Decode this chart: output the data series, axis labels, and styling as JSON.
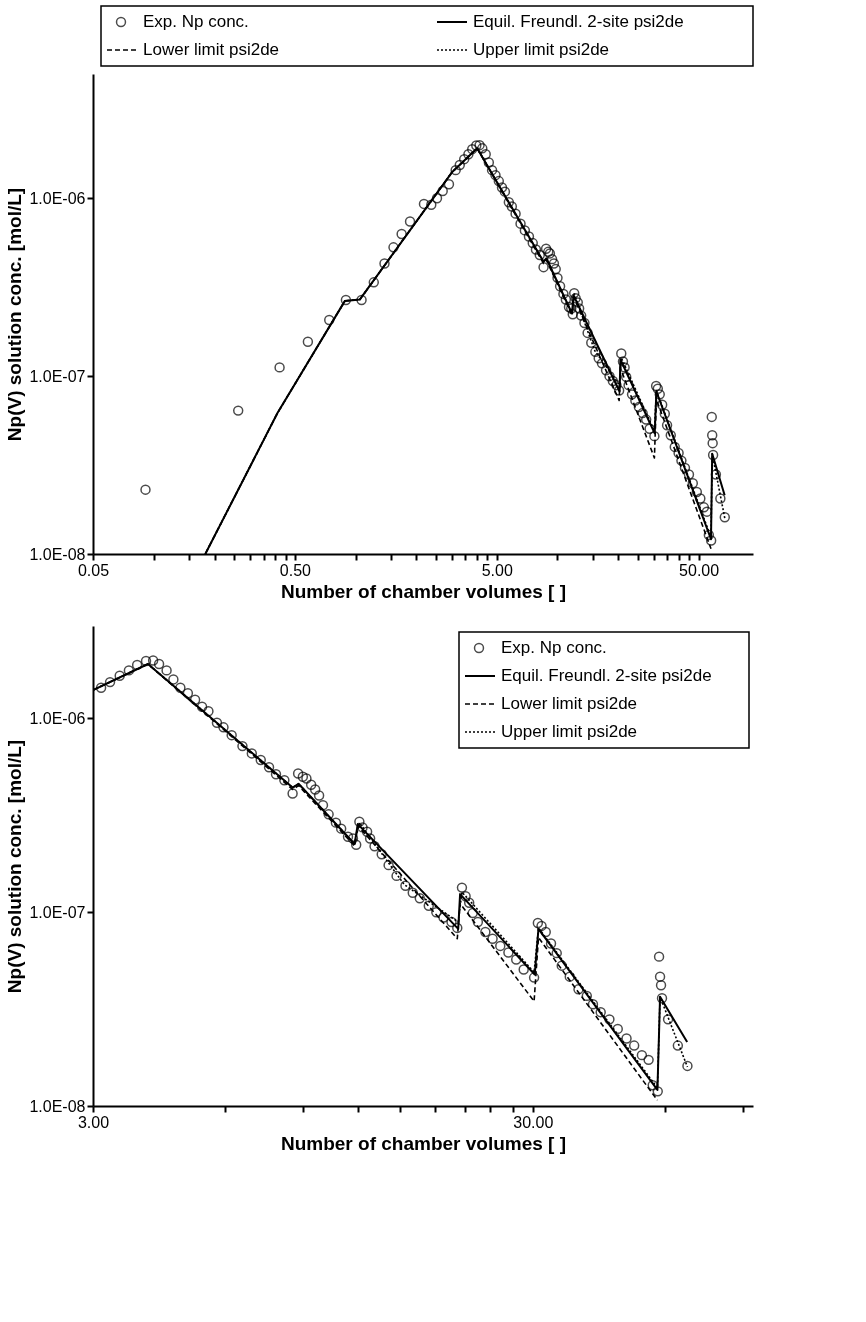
{
  "chart_data": [
    {
      "type": "scatter",
      "xlabel": "Number of chamber volumes [ ]",
      "ylabel": "Np(V) solution conc. [mol/L]",
      "log": "xy",
      "grid": false,
      "legend": "top",
      "xlim": [
        0.05,
        93
      ],
      "ylim": [
        1e-08,
        5e-06
      ],
      "xticks": [
        {
          "value": 0.05,
          "label": "0.05"
        },
        {
          "value": 0.1,
          "label": null
        },
        {
          "value": 0.15,
          "label": null
        },
        {
          "value": 0.2,
          "label": null
        },
        {
          "value": 0.25,
          "label": null
        },
        {
          "value": 0.3,
          "label": null
        },
        {
          "value": 0.35,
          "label": null
        },
        {
          "value": 0.4,
          "label": null
        },
        {
          "value": 0.45,
          "label": null
        },
        {
          "value": 0.5,
          "label": "0.50"
        },
        {
          "value": 1,
          "label": null
        },
        {
          "value": 1.5,
          "label": null
        },
        {
          "value": 2,
          "label": null
        },
        {
          "value": 2.5,
          "label": null
        },
        {
          "value": 3,
          "label": null
        },
        {
          "value": 3.5,
          "label": null
        },
        {
          "value": 4,
          "label": null
        },
        {
          "value": 4.5,
          "label": null
        },
        {
          "value": 5,
          "label": "5.00"
        },
        {
          "value": 10,
          "label": null
        },
        {
          "value": 15,
          "label": null
        },
        {
          "value": 20,
          "label": null
        },
        {
          "value": 25,
          "label": null
        },
        {
          "value": 30,
          "label": null
        },
        {
          "value": 35,
          "label": null
        },
        {
          "value": 40,
          "label": null
        },
        {
          "value": 45,
          "label": null
        },
        {
          "value": 50,
          "label": "50.00"
        }
      ],
      "yticks": [
        {
          "value": 1e-08,
          "label": "1.0E-08"
        },
        {
          "value": 1e-07,
          "label": "1.0E-07"
        },
        {
          "value": 1e-06,
          "label": "1.0E-06"
        }
      ],
      "series": [
        {
          "name": "Exp. Np conc.",
          "type": "scatter",
          "marker": "circle",
          "color": "#000000",
          "x": [
            0.091,
            0.262,
            0.42,
            0.58,
            0.74,
            0.895,
            1.07,
            1.23,
            1.39,
            1.54,
            1.69,
            1.86,
            2.18,
            2.37,
            2.53,
            2.7,
            2.9,
            3.13,
            3.28,
            3.45,
            3.62,
            3.78,
            3.96,
            4.11,
            4.24,
            4.41,
            4.57,
            4.74,
            4.93,
            5.12,
            5.31,
            5.49,
            5.74,
            5.94,
            6.2,
            6.56,
            6.89,
            7.22,
            7.54,
            7.82,
            8.17,
            8.53,
            8.78,
            9.0,
            9.17,
            9.4,
            9.6,
            9.8,
            10.0,
            10.3,
            10.7,
            11.0,
            11.4,
            11.7,
            11.9,
            12.1,
            12.3,
            12.6,
            12.8,
            13.1,
            13.6,
            14.1,
            14.7,
            15.4,
            16.0,
            16.6,
            17.4,
            18.1,
            18.8,
            19.6,
            20.2,
            20.7,
            21.1,
            21.5,
            21.9,
            22.5,
            23.4,
            24.3,
            25.3,
            26.4,
            27.5,
            28.6,
            30.2,
            30.8,
            31.4,
            32.1,
            33.0,
            34.0,
            34.9,
            36.4,
            38.1,
            39.8,
            41.1,
            42.8,
            44.8,
            46.8,
            49.0,
            51.0,
            53.1,
            55.0,
            56.2,
            57.7,
            58.1,
            58.4,
            58.7,
            59.0,
            60.9,
            64.1,
            67.4
          ],
          "values": [
            2.3e-08,
            6.4e-08,
            1.12e-07,
            1.56e-07,
            2.07e-07,
            2.68e-07,
            2.68e-07,
            3.37e-07,
            4.3e-07,
            5.3e-07,
            6.3e-07,
            7.4e-07,
            9.3e-07,
            9.2e-07,
            1e-06,
            1.1e-06,
            1.2e-06,
            1.44e-06,
            1.54e-06,
            1.66e-06,
            1.77e-06,
            1.89e-06,
            1.98e-06,
            1.99e-06,
            1.91e-06,
            1.77e-06,
            1.59e-06,
            1.44e-06,
            1.35e-06,
            1.25e-06,
            1.15e-06,
            1.09e-06,
            9.5e-07,
            9e-07,
            8.2e-07,
            7.2e-07,
            6.6e-07,
            6.1e-07,
            5.6e-07,
            5.15e-07,
            4.8e-07,
            4.1e-07,
            5.2e-07,
            5e-07,
            4.9e-07,
            4.55e-07,
            4.3e-07,
            4e-07,
            3.57e-07,
            3.2e-07,
            2.9e-07,
            2.7e-07,
            2.45e-07,
            2.4e-07,
            2.23e-07,
            2.93e-07,
            2.74e-07,
            2.6e-07,
            2.4e-07,
            2.19e-07,
            1.99e-07,
            1.75e-07,
            1.54e-07,
            1.37e-07,
            1.26e-07,
            1.18e-07,
            1.08e-07,
            1e-07,
            9.4e-08,
            8.9e-08,
            8.3e-08,
            1.34e-07,
            1.21e-07,
            1.12e-07,
            9.9e-08,
            8.9e-08,
            7.9e-08,
            7.3e-08,
            6.7e-08,
            6.2e-08,
            5.7e-08,
            5.06e-08,
            4.6e-08,
            8.8e-08,
            8.5e-08,
            7.9e-08,
            6.9e-08,
            6.15e-08,
            5.3e-08,
            4.65e-08,
            4e-08,
            3.7e-08,
            3.35e-08,
            3.05e-08,
            2.8e-08,
            2.5e-08,
            2.23e-08,
            2.05e-08,
            1.83e-08,
            1.73e-08,
            1.28e-08,
            1.19e-08,
            5.9e-08,
            4.65e-08,
            4.2e-08,
            3.6e-08,
            2.8e-08,
            2.05e-08,
            1.61e-08
          ]
        },
        {
          "name": "Equil. Freundl. 2-site psi2de",
          "type": "line",
          "line_style": "solid",
          "color": "#000000",
          "x": [
            0.18,
            0.41,
            0.885,
            1.05,
            3.0,
            4.0,
            8.53,
            8.8,
            11.8,
            12.0,
            20.3,
            20.5,
            30.3,
            30.9,
            57.6,
            58.4,
            67.3
          ],
          "values": [
            1e-08,
            6.2e-08,
            2.65e-07,
            2.7e-07,
            1.4e-06,
            1.91e-06,
            4.4e-07,
            4.6e-07,
            2.25e-07,
            2.85e-07,
            8.2e-08,
            1.24e-07,
            4.77e-08,
            8.2e-08,
            1.21e-08,
            3.66e-08,
            2.14e-08
          ]
        },
        {
          "name": "Lower limit psi2de",
          "type": "line",
          "line_style": "dashed",
          "color": "#000000",
          "x": [
            0.18,
            0.41,
            0.885,
            1.05,
            3.0,
            4.0,
            8.53,
            8.8,
            11.8,
            12.0,
            20.2,
            20.5,
            30.2,
            30.9,
            57.6
          ],
          "values": [
            1e-08,
            6.2e-08,
            2.65e-07,
            2.7e-07,
            1.4e-06,
            1.91e-06,
            4.3e-07,
            4.5e-07,
            2.2e-07,
            2.8e-07,
            7.3e-08,
            1.11e-07,
            3.47e-08,
            7.4e-08,
            1.07e-08
          ]
        },
        {
          "name": "Upper limit psi2de",
          "type": "line",
          "line_style": "dotted",
          "color": "#000000",
          "x": [
            0.18,
            0.41,
            0.885,
            1.05,
            3.0,
            4.0,
            8.53,
            8.8,
            11.8,
            12.1,
            15.3,
            20.3,
            20.7,
            30.2,
            30.9,
            57.6,
            58.4,
            67.4
          ],
          "values": [
            1e-08,
            6.2e-08,
            2.65e-07,
            2.7e-07,
            1.4e-06,
            1.91e-06,
            4.4e-07,
            4.6e-07,
            2.25e-07,
            2.9e-07,
            1.39e-07,
            8.9e-08,
            1.27e-07,
            4.9e-08,
            8.3e-08,
            1.24e-08,
            3.66e-08,
            1.59e-08
          ]
        }
      ]
    },
    {
      "type": "scatter",
      "xlabel": "Number of chamber volumes [ ]",
      "ylabel": "Np(V) solution conc. [mol/L]",
      "log": "xy",
      "grid": false,
      "legend": "top right",
      "xlim": [
        3,
        95
      ],
      "ylim": [
        1e-08,
        3e-06
      ],
      "xticks": [
        {
          "value": 3,
          "label": "3.00"
        },
        {
          "value": 6,
          "label": null
        },
        {
          "value": 9,
          "label": null
        },
        {
          "value": 12,
          "label": null
        },
        {
          "value": 15,
          "label": null
        },
        {
          "value": 18,
          "label": null
        },
        {
          "value": 21,
          "label": null
        },
        {
          "value": 24,
          "label": null
        },
        {
          "value": 27,
          "label": null
        },
        {
          "value": 30,
          "label": "30.00"
        },
        {
          "value": 60,
          "label": null
        },
        {
          "value": 90,
          "label": null
        }
      ],
      "yticks": [
        {
          "value": 1e-08,
          "label": "1.0E-08"
        },
        {
          "value": 1e-07,
          "label": "1.0E-07"
        },
        {
          "value": 1e-06,
          "label": "1.0E-06"
        }
      ],
      "series": [
        {
          "name": "Exp. Np conc.",
          "type": "scatter",
          "marker": "circle",
          "color": "#000000",
          "x": [
            3.13,
            3.28,
            3.45,
            3.62,
            3.78,
            3.96,
            4.11,
            4.24,
            4.41,
            4.57,
            4.74,
            4.93,
            5.12,
            5.31,
            5.49,
            5.74,
            5.94,
            6.2,
            6.56,
            6.89,
            7.22,
            7.54,
            7.82,
            8.17,
            8.53,
            8.78,
            9.0,
            9.17,
            9.4,
            9.6,
            9.8,
            10.0,
            10.3,
            10.7,
            11.0,
            11.4,
            11.7,
            11.9,
            12.1,
            12.3,
            12.6,
            12.8,
            13.1,
            13.6,
            14.1,
            14.7,
            15.4,
            16.0,
            16.6,
            17.4,
            18.1,
            18.8,
            19.6,
            20.2,
            20.7,
            21.1,
            21.5,
            21.9,
            22.5,
            23.4,
            24.3,
            25.3,
            26.4,
            27.5,
            28.6,
            30.2,
            30.8,
            31.4,
            32.1,
            33.0,
            34.0,
            34.9,
            36.4,
            38.1,
            39.8,
            41.1,
            42.8,
            44.8,
            46.8,
            49.0,
            51.0,
            53.1,
            55.0,
            56.2,
            57.7,
            58.1,
            58.4,
            58.7,
            59.0,
            60.9,
            64.1,
            67.4
          ],
          "values": [
            1.44e-06,
            1.54e-06,
            1.66e-06,
            1.77e-06,
            1.89e-06,
            1.98e-06,
            1.99e-06,
            1.91e-06,
            1.77e-06,
            1.59e-06,
            1.44e-06,
            1.35e-06,
            1.25e-06,
            1.15e-06,
            1.09e-06,
            9.5e-07,
            9e-07,
            8.2e-07,
            7.2e-07,
            6.6e-07,
            6.1e-07,
            5.6e-07,
            5.15e-07,
            4.8e-07,
            4.1e-07,
            5.2e-07,
            5e-07,
            4.9e-07,
            4.55e-07,
            4.3e-07,
            4e-07,
            3.57e-07,
            3.2e-07,
            2.9e-07,
            2.7e-07,
            2.45e-07,
            2.4e-07,
            2.23e-07,
            2.93e-07,
            2.74e-07,
            2.6e-07,
            2.4e-07,
            2.19e-07,
            1.99e-07,
            1.75e-07,
            1.54e-07,
            1.37e-07,
            1.26e-07,
            1.18e-07,
            1.08e-07,
            1e-07,
            9.4e-08,
            8.9e-08,
            8.3e-08,
            1.34e-07,
            1.21e-07,
            1.12e-07,
            9.9e-08,
            8.9e-08,
            7.9e-08,
            7.3e-08,
            6.7e-08,
            6.2e-08,
            5.7e-08,
            5.06e-08,
            4.6e-08,
            8.8e-08,
            8.5e-08,
            7.9e-08,
            6.9e-08,
            6.15e-08,
            5.3e-08,
            4.65e-08,
            4e-08,
            3.7e-08,
            3.35e-08,
            3.05e-08,
            2.8e-08,
            2.5e-08,
            2.23e-08,
            2.05e-08,
            1.83e-08,
            1.73e-08,
            1.28e-08,
            1.19e-08,
            5.9e-08,
            4.65e-08,
            4.2e-08,
            3.6e-08,
            2.8e-08,
            2.05e-08,
            1.61e-08
          ]
        },
        {
          "name": "Equil. Freundl. 2-site psi2de",
          "type": "line",
          "line_style": "solid",
          "color": "#000000",
          "x": [
            3.0,
            4.0,
            8.53,
            8.8,
            11.8,
            12.0,
            20.3,
            20.5,
            30.3,
            30.9,
            57.6,
            58.4,
            67.3
          ],
          "values": [
            1.4e-06,
            1.91e-06,
            4.4e-07,
            4.6e-07,
            2.25e-07,
            2.85e-07,
            8.2e-08,
            1.24e-07,
            4.77e-08,
            8.2e-08,
            1.21e-08,
            3.66e-08,
            2.14e-08
          ]
        },
        {
          "name": "Lower limit psi2de",
          "type": "line",
          "line_style": "dashed",
          "color": "#000000",
          "x": [
            3.0,
            4.0,
            8.53,
            8.8,
            11.8,
            12.0,
            20.2,
            20.5,
            30.2,
            30.9,
            57.6
          ],
          "values": [
            1.4e-06,
            1.91e-06,
            4.3e-07,
            4.5e-07,
            2.2e-07,
            2.8e-07,
            7.3e-08,
            1.11e-07,
            3.47e-08,
            7.4e-08,
            1.07e-08
          ]
        },
        {
          "name": "Upper limit psi2de",
          "type": "line",
          "line_style": "dotted",
          "color": "#000000",
          "x": [
            3.0,
            4.0,
            8.53,
            8.8,
            11.8,
            12.1,
            15.3,
            20.3,
            20.7,
            30.2,
            30.9,
            57.6,
            58.4,
            67.4
          ],
          "values": [
            1.4e-06,
            1.91e-06,
            4.4e-07,
            4.6e-07,
            2.25e-07,
            2.9e-07,
            1.39e-07,
            8.9e-08,
            1.27e-07,
            4.9e-08,
            8.3e-08,
            1.24e-08,
            3.66e-08,
            1.59e-08
          ]
        }
      ]
    }
  ]
}
